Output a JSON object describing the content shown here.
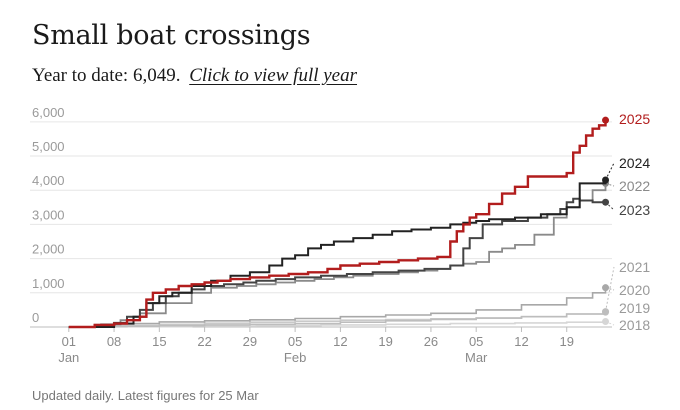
{
  "header": {
    "title": "Small boat crossings",
    "subtitle_prefix": "Year to date: 6,049.",
    "subtitle_link": "Click to view full year"
  },
  "footer": {
    "note": "Updated daily. Latest figures for 25 Mar"
  },
  "colors": {
    "2025": "#b21d1d",
    "2024": "#222222",
    "2023": "#444444",
    "2022": "#8a8a8a",
    "2021": "#bdbdbd",
    "2020": "#a8a8a8",
    "2019": "#c9c9c9",
    "2018": "#d6d6d6",
    "grid": "#e6e6e6",
    "axis_text": "#9a9a9a"
  },
  "chart_data": {
    "type": "line",
    "title": "Small boat crossings",
    "xlabel": "",
    "ylabel": "",
    "x_unit": "day_of_year",
    "xlim": [
      -5,
      85
    ],
    "ylim": [
      0,
      6200
    ],
    "grid": true,
    "y_ticks": [
      {
        "value": 0,
        "label": "0"
      },
      {
        "value": 1000,
        "label": "1,000"
      },
      {
        "value": 2000,
        "label": "2,000"
      },
      {
        "value": 3000,
        "label": "3,000"
      },
      {
        "value": 4000,
        "label": "4,000"
      },
      {
        "value": 5000,
        "label": "5,000"
      },
      {
        "value": 6000,
        "label": "6,000"
      }
    ],
    "x_ticks": [
      {
        "value": 1,
        "label": "01"
      },
      {
        "value": 8,
        "label": "08"
      },
      {
        "value": 15,
        "label": "15"
      },
      {
        "value": 22,
        "label": "22"
      },
      {
        "value": 29,
        "label": "29"
      },
      {
        "value": 36,
        "label": "05"
      },
      {
        "value": 43,
        "label": "12"
      },
      {
        "value": 50,
        "label": "19"
      },
      {
        "value": 57,
        "label": "26"
      },
      {
        "value": 64,
        "label": "05"
      },
      {
        "value": 71,
        "label": "12"
      },
      {
        "value": 78,
        "label": "19"
      }
    ],
    "month_labels": [
      {
        "value": 1,
        "label": "Jan"
      },
      {
        "value": 36,
        "label": "Feb"
      },
      {
        "value": 64,
        "label": "Mar"
      }
    ],
    "series": [
      {
        "name": "2018",
        "color_key": "2018",
        "width": 1.6,
        "label_y": 330,
        "x": [
          1,
          10,
          20,
          30,
          40,
          50,
          60,
          70,
          78,
          84
        ],
        "y": [
          0,
          10,
          30,
          40,
          60,
          80,
          100,
          120,
          140,
          160
        ]
      },
      {
        "name": "2019",
        "color_key": "2019",
        "width": 1.6,
        "label_y": 313,
        "x": [
          1,
          8,
          15,
          22,
          29,
          36,
          43,
          50,
          57,
          64,
          71,
          78,
          84
        ],
        "y": [
          0,
          40,
          80,
          110,
          140,
          170,
          200,
          220,
          240,
          260,
          300,
          380,
          430
        ]
      },
      {
        "name": "2020",
        "color_key": "2020",
        "width": 1.6,
        "label_y": 295,
        "x": [
          1,
          8,
          15,
          22,
          29,
          36,
          43,
          50,
          57,
          64,
          71,
          78,
          82,
          84
        ],
        "y": [
          0,
          100,
          150,
          180,
          210,
          250,
          300,
          350,
          400,
          500,
          650,
          850,
          1000,
          1150
        ]
      },
      {
        "name": "2021",
        "color_key": "2021",
        "width": 1.6,
        "label_y": 272,
        "x": [
          1,
          8,
          15,
          22,
          29,
          36,
          43,
          50,
          57,
          64,
          71,
          78,
          84
        ],
        "y": [
          0,
          20,
          40,
          60,
          80,
          100,
          140,
          180,
          220,
          260,
          300,
          380,
          450
        ]
      },
      {
        "name": "2022",
        "color_key": "2022",
        "width": 1.8,
        "label_y": 191,
        "x": [
          1,
          6,
          9,
          12,
          16,
          20,
          23,
          27,
          30,
          33,
          36,
          39,
          42,
          45,
          48,
          52,
          55,
          58,
          60,
          62,
          64,
          66,
          68,
          70,
          73,
          76,
          78,
          80,
          82,
          84
        ],
        "y": [
          0,
          80,
          200,
          400,
          700,
          1000,
          1150,
          1200,
          1250,
          1300,
          1350,
          1400,
          1450,
          1500,
          1550,
          1600,
          1650,
          1700,
          1800,
          1850,
          1900,
          2200,
          2300,
          2400,
          2700,
          3200,
          3500,
          3700,
          4000,
          4200
        ]
      },
      {
        "name": "2023",
        "color_key": "2023",
        "width": 2,
        "label_y": 215,
        "x": [
          1,
          5,
          8,
          10,
          12,
          14,
          16,
          18,
          20,
          22,
          25,
          28,
          30,
          33,
          36,
          40,
          44,
          48,
          52,
          56,
          60,
          62,
          63,
          65,
          68,
          72,
          75,
          77,
          78,
          79,
          80,
          82,
          84
        ],
        "y": [
          0,
          60,
          120,
          300,
          500,
          700,
          900,
          1000,
          1100,
          1200,
          1250,
          1300,
          1350,
          1400,
          1450,
          1500,
          1550,
          1600,
          1650,
          1700,
          1800,
          2300,
          2600,
          3000,
          3100,
          3200,
          3300,
          3450,
          3650,
          3750,
          3700,
          3650,
          3650
        ]
      },
      {
        "name": "2024",
        "color_key": "2024",
        "width": 2,
        "label_y": 168,
        "x": [
          1,
          8,
          11,
          13,
          15,
          17,
          20,
          23,
          26,
          29,
          32,
          34,
          36,
          38,
          40,
          42,
          45,
          48,
          51,
          54,
          57,
          60,
          62,
          64,
          66,
          70,
          74,
          78,
          80,
          84
        ],
        "y": [
          0,
          100,
          300,
          700,
          900,
          1000,
          1200,
          1350,
          1500,
          1600,
          1800,
          2000,
          2100,
          2300,
          2400,
          2500,
          2600,
          2700,
          2800,
          2850,
          2900,
          3000,
          3050,
          3100,
          3150,
          3200,
          3300,
          3500,
          4200,
          4300
        ]
      },
      {
        "name": "2025",
        "color_key": "2025",
        "width": 2.4,
        "label_y": 124,
        "x": [
          1,
          5,
          8,
          10,
          12,
          13,
          14,
          16,
          18,
          20,
          22,
          24,
          26,
          29,
          32,
          35,
          38,
          41,
          43,
          46,
          49,
          52,
          55,
          58,
          60,
          61,
          62,
          63,
          64,
          66,
          68,
          70,
          72,
          74,
          76,
          77,
          78,
          79,
          80,
          81,
          82,
          83,
          84
        ],
        "y": [
          0,
          60,
          100,
          200,
          300,
          800,
          1000,
          1100,
          1200,
          1250,
          1300,
          1350,
          1400,
          1450,
          1500,
          1550,
          1600,
          1700,
          1800,
          1850,
          1900,
          1950,
          2000,
          2050,
          2500,
          2800,
          3000,
          3200,
          3300,
          3600,
          3900,
          4100,
          4400,
          4400,
          4400,
          4400,
          4500,
          5100,
          5300,
          5600,
          5800,
          5900,
          6049
        ]
      }
    ]
  }
}
